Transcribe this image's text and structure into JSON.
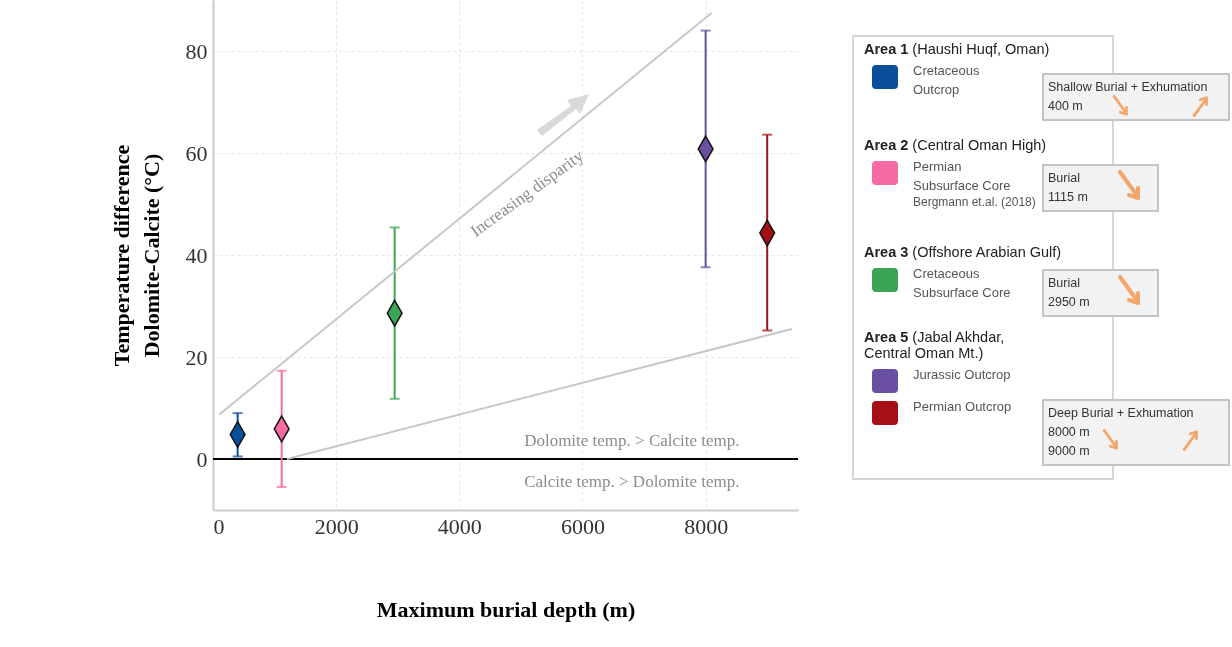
{
  "chart_data": {
    "type": "scatter",
    "xlabel": "Maximum burial depth (m)",
    "ylabel": "Temperature difference\nDolomite-Calcite (°C)",
    "xlim": [
      0,
      9500
    ],
    "xticks": [
      0,
      2000,
      4000,
      6000,
      8000
    ],
    "ylim": [
      -10,
      90
    ],
    "yticks": [
      0,
      20,
      40,
      60,
      80
    ],
    "grid": true,
    "legend": "right",
    "marker": "diamond",
    "series": [
      {
        "name": "Cretaceous Outcrop",
        "color": "#0b4f9c",
        "x": [
          400
        ],
        "values": [
          4.8
        ],
        "errors": [
          [
            0.5,
            9
          ]
        ]
      },
      {
        "name": "Permian Subsurface Core",
        "color": "#f76aa3",
        "x": [
          1115
        ],
        "values": [
          5.9
        ],
        "errors": [
          [
            -5.5,
            17.3
          ]
        ]
      },
      {
        "name": "Cretaceous Subsurface Core",
        "color": "#3aa655",
        "x": [
          2950
        ],
        "values": [
          28.6
        ],
        "errors": [
          [
            11.8,
            45.4
          ]
        ]
      },
      {
        "name": "Jurassic Outcrop",
        "color": "#6a4fa3",
        "x": [
          8000
        ],
        "values": [
          60.8
        ],
        "errors": [
          [
            37.6,
            84
          ]
        ]
      },
      {
        "name": "Permian Outcrop",
        "color": "#a50f15",
        "x": [
          9000
        ],
        "values": [
          44.3
        ],
        "errors": [
          [
            25.2,
            63.6
          ]
        ]
      },
      {
        "type": "line",
        "color": "#c8c8c8",
        "marker": "none",
        "x": [
          100,
          8100
        ],
        "values": [
          8.7,
          87.5
        ]
      },
      {
        "type": "line",
        "color": "#c8c8c8",
        "marker": "none",
        "x": [
          1200,
          9400
        ],
        "values": [
          0,
          25.5
        ]
      }
    ],
    "ref_lines": [
      {
        "axis": "y",
        "value": 0,
        "color": "#000000"
      }
    ],
    "annotations": [
      "Increasing disparity",
      "Dolomite temp. > Calcite temp.",
      "Calcite temp. > Dolomite temp.",
      "Area 1 (Haushi Huqf, Oman)",
      "Shallow Burial + Exhumation\n400 m",
      "Area 2 (Central Oman High)",
      "Burial\n1115 m",
      "Bergmann et.al. (2018)",
      "Area 3 (Offshore Arabian Gulf)",
      "Burial\n2950 m",
      "Area 5 (Jabal Akhdar,\nCentral Oman Mt.)",
      "Deep Burial + Exhumation\n8000 m\n9000 m"
    ]
  }
}
